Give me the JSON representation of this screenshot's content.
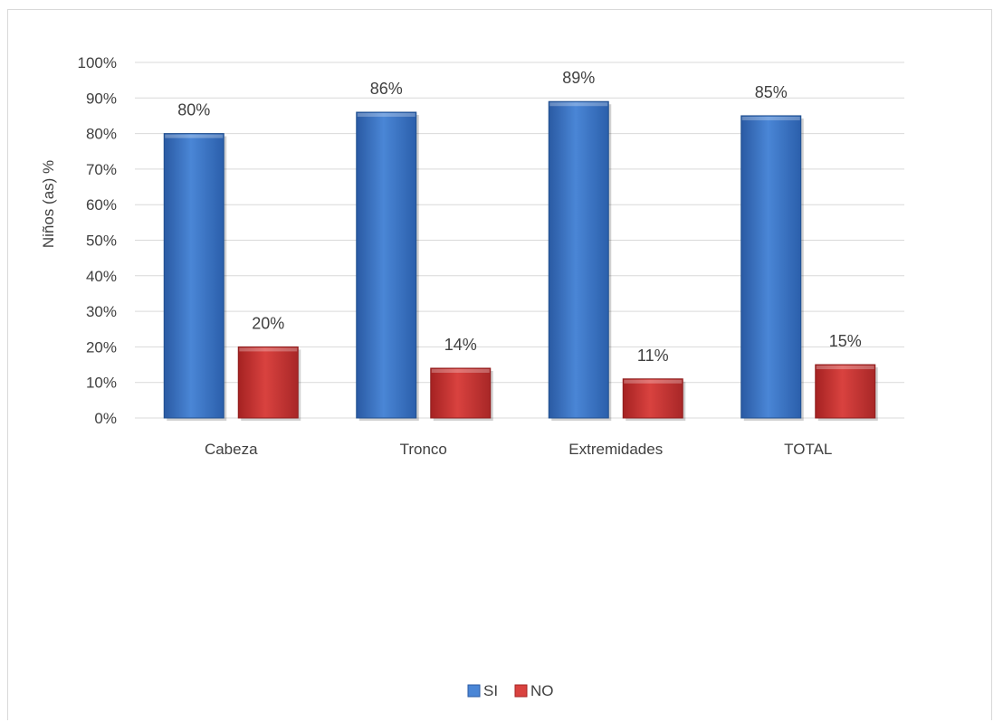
{
  "chart_data": {
    "type": "bar",
    "title": "",
    "xlabel": "",
    "ylabel": "Niños (as)  %",
    "categories": [
      "Cabeza",
      "Tronco",
      "Extremidades",
      "TOTAL"
    ],
    "series": [
      {
        "name": "SI",
        "color": "#3a74c8",
        "values": [
          80,
          86,
          89,
          85
        ],
        "labels": [
          "80%",
          "86%",
          "89%",
          "85%"
        ]
      },
      {
        "name": "NO",
        "color": "#c9302f",
        "values": [
          20,
          14,
          11,
          15
        ],
        "labels": [
          "20%",
          "14%",
          "11%",
          "15%"
        ]
      }
    ],
    "ylim": [
      0,
      100
    ],
    "yticks": [
      0,
      10,
      20,
      30,
      40,
      50,
      60,
      70,
      80,
      90,
      100
    ],
    "ytick_labels": [
      "0%",
      "10%",
      "20%",
      "30%",
      "40%",
      "50%",
      "60%",
      "70%",
      "80%",
      "90%",
      "100%"
    ],
    "grid": true,
    "legend_position": "bottom"
  }
}
